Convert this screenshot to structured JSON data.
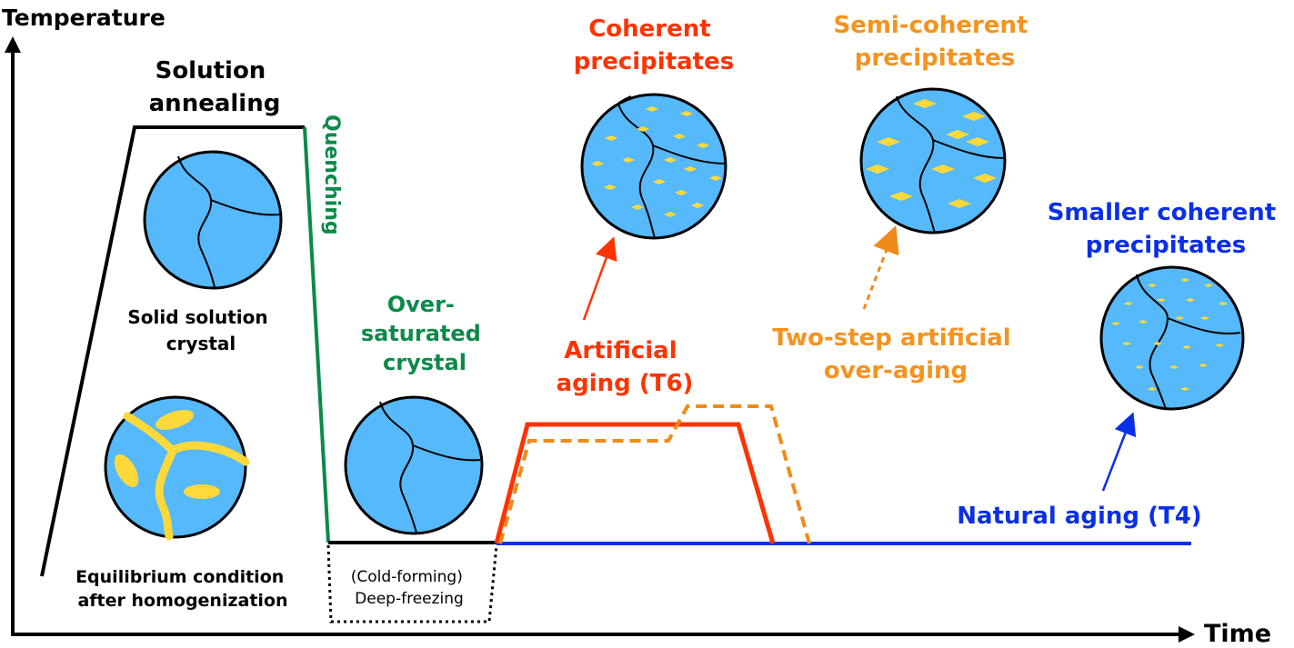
{
  "axes": {
    "y_label": "Temperature",
    "x_label": "Time"
  },
  "labels": {
    "solution_annealing": [
      "Solution",
      "annealing"
    ],
    "quenching": "Quenching",
    "solid_solution": [
      "Solid solution",
      "crystal"
    ],
    "equilibrium": [
      "Equilibrium condition",
      "after homogenization"
    ],
    "over_saturated": [
      "Over-",
      "saturated",
      "crystal"
    ],
    "cold_forming": [
      "(Cold-forming)",
      "Deep-freezing"
    ],
    "coherent": [
      "Coherent",
      "precipitates"
    ],
    "artificial_aging": [
      "Artificial",
      "aging (T6)"
    ],
    "semi_coherent": [
      "Semi-coherent",
      "precipitates"
    ],
    "two_step": [
      "Two-step artificial",
      "over-aging"
    ],
    "smaller_coherent": [
      "Smaller coherent",
      "precipitates"
    ],
    "natural_aging": "Natural aging (T4)"
  },
  "colors": {
    "black": "#000000",
    "green": "#0b8a4a",
    "red": "#ff3300",
    "orange": "#f08a1a",
    "blue": "#0b2fe8",
    "grain": "#55b9fb",
    "precipitate": "#ffd93a"
  }
}
